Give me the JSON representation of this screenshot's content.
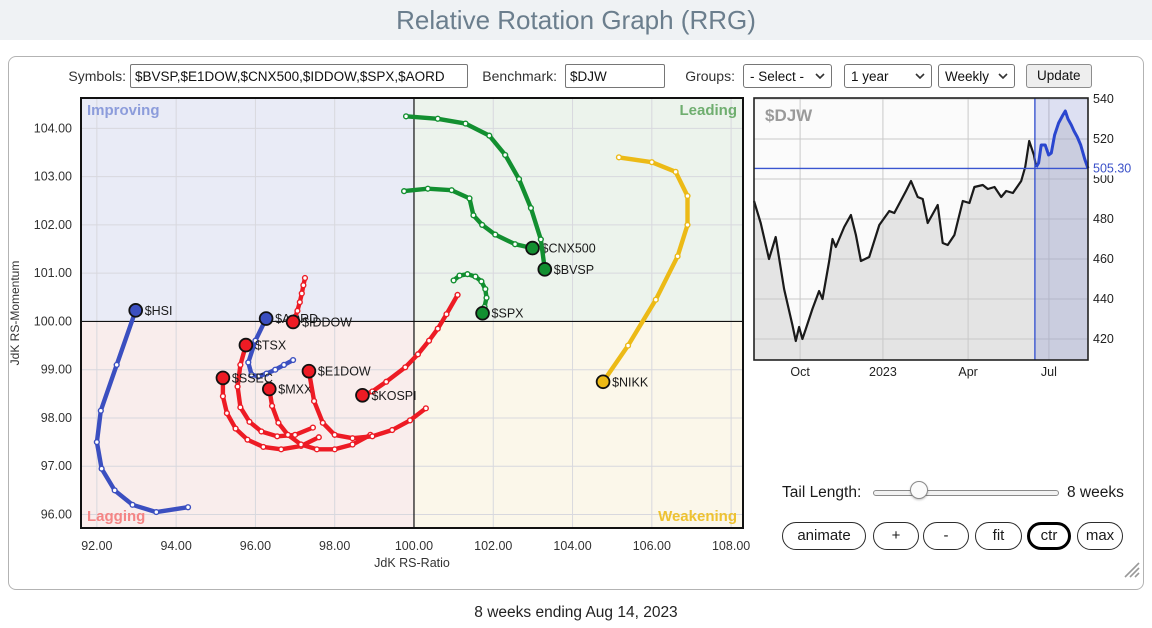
{
  "header": {
    "title": "Relative Rotation Graph (RRG)"
  },
  "toolbar": {
    "symbols_label": "Symbols:",
    "symbols_value": "$BVSP,$E1DOW,$CNX500,$IDDOW,$SPX,$AORD",
    "benchmark_label": "Benchmark:",
    "benchmark_value": "$DJW",
    "groups_label": "Groups:",
    "groups_value": "- Select -",
    "period_value": "1 year",
    "frequency_value": "Weekly",
    "update_label": "Update"
  },
  "icons": {
    "select_chevron": "chevron-down",
    "resize_handle": "diagonal-grip-lines"
  },
  "chart_data": [
    {
      "type": "scatter",
      "name": "rrg",
      "xlabel": "JdK RS-Ratio",
      "ylabel": "JdK RS-Momentum",
      "xlim": [
        91.6,
        108.3
      ],
      "ylim": [
        95.72,
        104.63
      ],
      "xticks": [
        92,
        94,
        96,
        98,
        100,
        102,
        104,
        106,
        108
      ],
      "yticks": [
        96,
        97,
        98,
        99,
        100,
        101,
        102,
        103,
        104
      ],
      "center": [
        100,
        100
      ],
      "grid": true,
      "quadrants": {
        "improving": {
          "label": "Improving",
          "color": "#8c9cdb",
          "bg": "#e9ebf6"
        },
        "leading": {
          "label": "Leading",
          "color": "#6fae6f",
          "bg": "#ecf3ec"
        },
        "lagging": {
          "label": "Lagging",
          "color": "#f48484",
          "bg": "#f9edec"
        },
        "weakening": {
          "label": "Weakening",
          "color": "#eec231",
          "bg": "#fbf7ea"
        }
      },
      "series": [
        {
          "name": "$HSI",
          "color": "#3b4fc0",
          "points": [
            [
              94.3,
              96.15
            ],
            [
              93.5,
              96.05
            ],
            [
              92.9,
              96.2
            ],
            [
              92.45,
              96.5
            ],
            [
              92.12,
              96.95
            ],
            [
              92.0,
              97.5
            ],
            [
              92.1,
              98.15
            ],
            [
              92.5,
              99.1
            ],
            [
              92.98,
              100.23
            ]
          ]
        },
        {
          "name": "$AORD",
          "color": "#3b4fc0",
          "points": [
            [
              96.95,
              99.2
            ],
            [
              96.72,
              99.1
            ],
            [
              96.5,
              99.0
            ],
            [
              96.28,
              98.92
            ],
            [
              96.07,
              98.86
            ],
            [
              95.9,
              98.9
            ],
            [
              95.82,
              99.15
            ],
            [
              96.0,
              99.6
            ],
            [
              96.27,
              100.06
            ]
          ]
        },
        {
          "name": "$TSX",
          "color": "#ed1b24",
          "points": [
            [
              97.45,
              97.8
            ],
            [
              97.0,
              97.65
            ],
            [
              96.55,
              97.62
            ],
            [
              96.15,
              97.72
            ],
            [
              95.85,
              97.92
            ],
            [
              95.62,
              98.22
            ],
            [
              95.55,
              98.65
            ],
            [
              95.62,
              99.1
            ],
            [
              95.76,
              99.51
            ]
          ]
        },
        {
          "name": "$SSEC",
          "color": "#ed1b24",
          "points": [
            [
              97.6,
              97.6
            ],
            [
              97.15,
              97.42
            ],
            [
              96.65,
              97.35
            ],
            [
              96.2,
              97.4
            ],
            [
              95.8,
              97.55
            ],
            [
              95.5,
              97.78
            ],
            [
              95.28,
              98.1
            ],
            [
              95.18,
              98.45
            ],
            [
              95.18,
              98.83
            ]
          ]
        },
        {
          "name": "$MXX",
          "color": "#ed1b24",
          "points": [
            [
              98.9,
              97.65
            ],
            [
              98.45,
              97.45
            ],
            [
              98.0,
              97.35
            ],
            [
              97.55,
              97.35
            ],
            [
              97.15,
              97.45
            ],
            [
              96.82,
              97.65
            ],
            [
              96.58,
              97.9
            ],
            [
              96.42,
              98.25
            ],
            [
              96.35,
              98.6
            ]
          ]
        },
        {
          "name": "$E1DOW",
          "color": "#ed1b24",
          "points": [
            [
              100.3,
              98.2
            ],
            [
              99.9,
              97.95
            ],
            [
              99.45,
              97.75
            ],
            [
              98.95,
              97.62
            ],
            [
              98.45,
              97.58
            ],
            [
              98.0,
              97.65
            ],
            [
              97.7,
              97.9
            ],
            [
              97.48,
              98.35
            ],
            [
              97.35,
              98.97
            ]
          ]
        },
        {
          "name": "$IDDOW",
          "color": "#ed1b24",
          "points": [
            [
              97.25,
              100.9
            ],
            [
              97.21,
              100.75
            ],
            [
              97.17,
              100.58
            ],
            [
              97.12,
              100.4
            ],
            [
              97.06,
              100.22
            ],
            [
              97.0,
              100.08
            ],
            [
              96.94,
              99.96
            ],
            [
              96.92,
              99.94
            ],
            [
              96.95,
              99.99
            ]
          ]
        },
        {
          "name": "$KOSPI",
          "color": "#ed1b24",
          "points": [
            [
              101.1,
              100.55
            ],
            [
              100.82,
              100.15
            ],
            [
              100.6,
              99.85
            ],
            [
              100.38,
              99.6
            ],
            [
              100.1,
              99.32
            ],
            [
              99.78,
              99.05
            ],
            [
              99.3,
              98.75
            ],
            [
              98.95,
              98.55
            ],
            [
              98.7,
              98.47
            ]
          ]
        },
        {
          "name": "$SPX",
          "color": "#128f30",
          "points": [
            [
              101.0,
              100.85
            ],
            [
              101.15,
              100.95
            ],
            [
              101.35,
              100.98
            ],
            [
              101.55,
              100.93
            ],
            [
              101.7,
              100.83
            ],
            [
              101.8,
              100.67
            ],
            [
              101.83,
              100.49
            ],
            [
              101.78,
              100.3
            ],
            [
              101.73,
              100.17
            ]
          ]
        },
        {
          "name": "$CNX500",
          "color": "#128f30",
          "points": [
            [
              99.75,
              102.7
            ],
            [
              100.35,
              102.75
            ],
            [
              100.95,
              102.72
            ],
            [
              101.4,
              102.55
            ],
            [
              101.5,
              102.2
            ],
            [
              101.72,
              102.0
            ],
            [
              102.05,
              101.8
            ],
            [
              102.55,
              101.6
            ],
            [
              102.99,
              101.52
            ]
          ]
        },
        {
          "name": "$BVSP",
          "color": "#128f30",
          "points": [
            [
              99.8,
              104.25
            ],
            [
              100.6,
              104.2
            ],
            [
              101.3,
              104.1
            ],
            [
              101.9,
              103.85
            ],
            [
              102.3,
              103.45
            ],
            [
              102.65,
              102.95
            ],
            [
              102.95,
              102.35
            ],
            [
              103.2,
              101.7
            ],
            [
              103.3,
              101.08
            ]
          ]
        },
        {
          "name": "$NIKK",
          "color": "#ecba16",
          "points": [
            [
              105.17,
              103.4
            ],
            [
              106.0,
              103.3
            ],
            [
              106.6,
              103.1
            ],
            [
              106.9,
              102.6
            ],
            [
              106.9,
              102.0
            ],
            [
              106.65,
              101.35
            ],
            [
              106.1,
              100.45
            ],
            [
              105.4,
              99.5
            ],
            [
              104.77,
              98.75
            ]
          ]
        }
      ]
    },
    {
      "type": "area",
      "name": "benchmark",
      "symbol": "$DJW",
      "last_value": "505.30",
      "last_price": 505.3,
      "ylim": [
        409.5,
        540.5
      ],
      "yticks": [
        540,
        520,
        500,
        480,
        460,
        440,
        420
      ],
      "xticks": [
        {
          "label": "Oct",
          "pos": 0.138
        },
        {
          "label": "2023",
          "pos": 0.386
        },
        {
          "label": "Apr",
          "pos": 0.641
        },
        {
          "label": "Jul",
          "pos": 0.883
        }
      ],
      "highlight_start": 0.841,
      "line_color": "#1a1a1a",
      "highlight_color": "#2a46cf",
      "points": [
        [
          0,
          489
        ],
        [
          0.02,
          478
        ],
        [
          0.045,
          460
        ],
        [
          0.065,
          471
        ],
        [
          0.09,
          445
        ],
        [
          0.115,
          427
        ],
        [
          0.125,
          419
        ],
        [
          0.135,
          426
        ],
        [
          0.145,
          420
        ],
        [
          0.155,
          425
        ],
        [
          0.175,
          435
        ],
        [
          0.195,
          444
        ],
        [
          0.205,
          440
        ],
        [
          0.225,
          459
        ],
        [
          0.235,
          470
        ],
        [
          0.245,
          466
        ],
        [
          0.27,
          476
        ],
        [
          0.29,
          482
        ],
        [
          0.305,
          472
        ],
        [
          0.32,
          459
        ],
        [
          0.345,
          461
        ],
        [
          0.375,
          477
        ],
        [
          0.405,
          484
        ],
        [
          0.42,
          483
        ],
        [
          0.455,
          494
        ],
        [
          0.47,
          499
        ],
        [
          0.49,
          491
        ],
        [
          0.505,
          490
        ],
        [
          0.52,
          478
        ],
        [
          0.55,
          487
        ],
        [
          0.565,
          468
        ],
        [
          0.58,
          467
        ],
        [
          0.6,
          472
        ],
        [
          0.625,
          489
        ],
        [
          0.645,
          488
        ],
        [
          0.66,
          496
        ],
        [
          0.685,
          497
        ],
        [
          0.7,
          495
        ],
        [
          0.72,
          496
        ],
        [
          0.74,
          491
        ],
        [
          0.755,
          494
        ],
        [
          0.775,
          493
        ],
        [
          0.8,
          499
        ],
        [
          0.812,
          506
        ],
        [
          0.824,
          519
        ],
        [
          0.838,
          512
        ],
        [
          0.845,
          506
        ],
        [
          0.852,
          508
        ],
        [
          0.86,
          517
        ],
        [
          0.872,
          517
        ],
        [
          0.882,
          512
        ],
        [
          0.89,
          513
        ],
        [
          0.9,
          522
        ],
        [
          0.912,
          528
        ],
        [
          0.925,
          532
        ],
        [
          0.932,
          534
        ],
        [
          0.94,
          530
        ],
        [
          0.95,
          527
        ],
        [
          0.958,
          524
        ],
        [
          0.968,
          521
        ],
        [
          0.978,
          517
        ],
        [
          0.99,
          510
        ],
        [
          1,
          505.3
        ]
      ]
    }
  ],
  "controls": {
    "tail_length_label": "Tail Length:",
    "tail_length_value": "8 weeks",
    "slider_pos": 0.247,
    "buttons": [
      {
        "label": "animate",
        "active": false
      },
      {
        "label": "+",
        "active": false
      },
      {
        "label": "-",
        "active": false
      },
      {
        "label": "fit",
        "active": false
      },
      {
        "label": "ctr",
        "active": true
      },
      {
        "label": "max",
        "active": false
      }
    ]
  },
  "footer": {
    "caption": "8 weeks ending Aug 14, 2023"
  }
}
